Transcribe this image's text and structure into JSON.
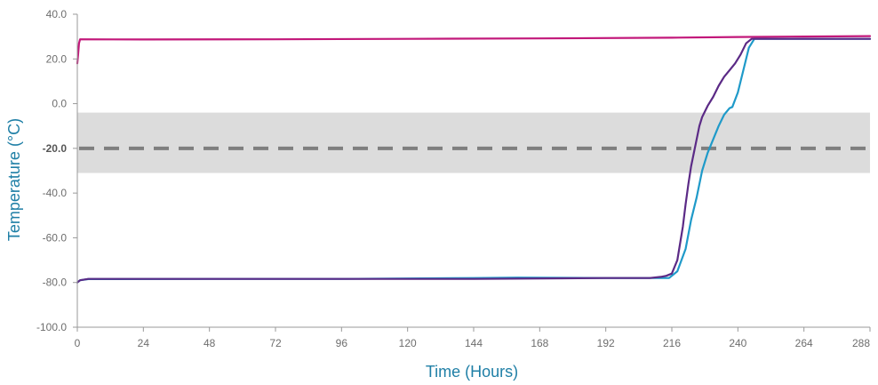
{
  "chart_data": {
    "type": "line",
    "title": "",
    "xlabel": "Time (Hours)",
    "ylabel": "Temperature (°C)",
    "xlim": [
      0,
      288
    ],
    "ylim": [
      -100,
      40
    ],
    "x_ticks": [
      0,
      24,
      48,
      72,
      96,
      120,
      144,
      168,
      192,
      216,
      240,
      264,
      288
    ],
    "x_tick_labels": [
      "0",
      "24",
      "48",
      "72",
      "96",
      "120",
      "144",
      "168",
      "192",
      "216",
      "240",
      "264",
      "288"
    ],
    "y_ticks": [
      40,
      20,
      0,
      -20,
      -40,
      -60,
      -80,
      -100
    ],
    "y_tick_labels": [
      "40.0",
      "20.0",
      "0.0",
      "-20.0",
      "-40.0",
      "-60.0",
      "-80.0",
      "-100.0"
    ],
    "highlighted_y_tick": "-20.0",
    "grid": false,
    "legend": "none",
    "bands": [
      {
        "y_range": [
          -31,
          -4
        ],
        "color": "#dcdcdc"
      }
    ],
    "reference_lines": [
      {
        "y": -20,
        "style": "dashed",
        "color": "#7f7f7f"
      }
    ],
    "series": [
      {
        "color": "#c2187a",
        "points": [
          [
            0,
            18
          ],
          [
            0.3,
            22
          ],
          [
            0.6,
            27
          ],
          [
            1,
            28.8
          ],
          [
            24,
            28.7
          ],
          [
            72,
            28.8
          ],
          [
            120,
            29
          ],
          [
            168,
            29.2
          ],
          [
            216,
            29.5
          ],
          [
            240,
            29.8
          ],
          [
            264,
            30
          ],
          [
            288,
            30.2
          ]
        ]
      },
      {
        "color": "#1f9ac9",
        "points": [
          [
            0,
            -80
          ],
          [
            1,
            -79
          ],
          [
            4,
            -78.5
          ],
          [
            48,
            -78.4
          ],
          [
            96,
            -78.4
          ],
          [
            144,
            -78
          ],
          [
            160,
            -77.8
          ],
          [
            192,
            -78
          ],
          [
            208,
            -78
          ],
          [
            215,
            -78
          ],
          [
            218,
            -75
          ],
          [
            221,
            -65
          ],
          [
            223,
            -52
          ],
          [
            225,
            -42
          ],
          [
            227,
            -30
          ],
          [
            229,
            -22
          ],
          [
            231,
            -16
          ],
          [
            233,
            -10
          ],
          [
            235,
            -5
          ],
          [
            237,
            -2
          ],
          [
            238,
            -1.5
          ],
          [
            240,
            5
          ],
          [
            242,
            15
          ],
          [
            244,
            25
          ],
          [
            246,
            29
          ],
          [
            256,
            29
          ],
          [
            288,
            29
          ]
        ]
      },
      {
        "color": "#5b2a86",
        "points": [
          [
            0,
            -80
          ],
          [
            1,
            -79
          ],
          [
            4,
            -78.4
          ],
          [
            48,
            -78.4
          ],
          [
            96,
            -78.4
          ],
          [
            144,
            -78.4
          ],
          [
            192,
            -78
          ],
          [
            208,
            -78
          ],
          [
            212,
            -77.5
          ],
          [
            214,
            -77
          ],
          [
            216,
            -76
          ],
          [
            218,
            -70
          ],
          [
            220,
            -55
          ],
          [
            221,
            -45
          ],
          [
            222,
            -36
          ],
          [
            223,
            -28
          ],
          [
            224,
            -22
          ],
          [
            225,
            -16
          ],
          [
            226,
            -10
          ],
          [
            227,
            -6
          ],
          [
            229,
            -1
          ],
          [
            231,
            3
          ],
          [
            233,
            8
          ],
          [
            235,
            12
          ],
          [
            237,
            15
          ],
          [
            239,
            18
          ],
          [
            241,
            22
          ],
          [
            243,
            27
          ],
          [
            245,
            29
          ],
          [
            256,
            29
          ],
          [
            288,
            29
          ]
        ]
      }
    ]
  }
}
